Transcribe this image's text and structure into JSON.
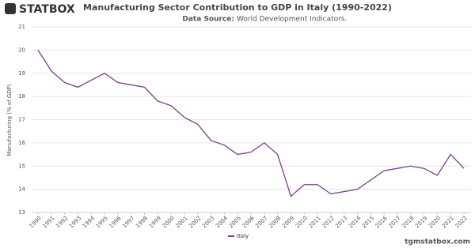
{
  "logo": "STATBOX",
  "footer": "tgmstatbox.com",
  "chart_data": {
    "type": "line",
    "title": "Manufacturing Sector Contribution to GDP in Italy (1990-2022)",
    "subtitle_label": "Data Source:",
    "subtitle": "World Development Indicators.",
    "y_label": "Manufacturing (% of GDP)",
    "x": [
      1990,
      1991,
      1992,
      1993,
      1994,
      1995,
      1996,
      1997,
      1998,
      1999,
      2000,
      2001,
      2002,
      2003,
      2004,
      2005,
      2006,
      2007,
      2008,
      2009,
      2010,
      2011,
      2012,
      2013,
      2014,
      2015,
      2016,
      2017,
      2018,
      2019,
      2020,
      2021,
      2022
    ],
    "xlim": [
      1990,
      2022
    ],
    "xticks": [
      1990,
      1991,
      1992,
      1993,
      1994,
      1995,
      1996,
      1997,
      1998,
      1999,
      2000,
      2001,
      2002,
      2003,
      2004,
      2005,
      2006,
      2007,
      2008,
      2009,
      2010,
      2011,
      2012,
      2013,
      2014,
      2015,
      2016,
      2017,
      2018,
      2019,
      2020,
      2021,
      2022
    ],
    "series": [
      {
        "name": "Italy",
        "color": "#7b3f8c",
        "values": [
          20.0,
          19.1,
          18.6,
          18.4,
          18.7,
          19.0,
          18.6,
          18.5,
          18.4,
          17.8,
          17.6,
          17.1,
          16.8,
          16.1,
          15.9,
          15.5,
          15.6,
          16.0,
          15.5,
          13.7,
          14.2,
          14.2,
          13.8,
          13.9,
          14.0,
          14.4,
          14.8,
          14.9,
          15.0,
          14.9,
          14.6,
          15.5,
          14.9
        ]
      }
    ],
    "ylim": [
      13,
      21
    ],
    "yticks": [
      13,
      14,
      15,
      16,
      17,
      18,
      19,
      20,
      21
    ],
    "grid": true
  }
}
